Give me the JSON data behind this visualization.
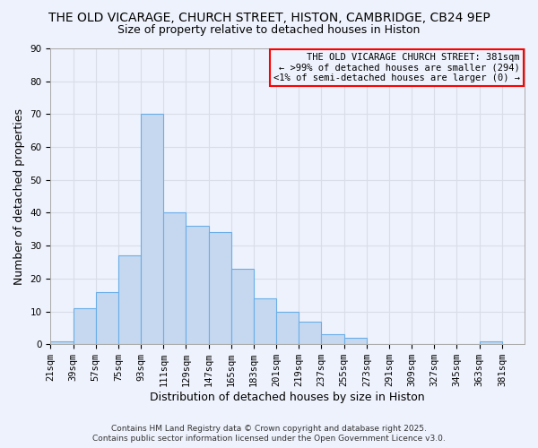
{
  "title": "THE OLD VICARAGE, CHURCH STREET, HISTON, CAMBRIDGE, CB24 9EP",
  "subtitle": "Size of property relative to detached houses in Histon",
  "xlabel": "Distribution of detached houses by size in Histon",
  "ylabel": "Number of detached properties",
  "bar_left_edges": [
    21,
    39,
    57,
    75,
    93,
    111,
    129,
    147,
    165,
    183,
    201,
    219,
    237,
    255,
    273,
    291,
    309,
    327,
    345,
    363
  ],
  "bar_heights": [
    1,
    11,
    16,
    27,
    70,
    40,
    36,
    34,
    23,
    14,
    10,
    7,
    3,
    2,
    0,
    0,
    0,
    0,
    0,
    1
  ],
  "bin_width": 18,
  "bar_color": "#c5d8f0",
  "bar_edgecolor": "#6aaee8",
  "ylim": [
    0,
    90
  ],
  "yticks": [
    0,
    10,
    20,
    30,
    40,
    50,
    60,
    70,
    80,
    90
  ],
  "xtick_labels": [
    "21sqm",
    "39sqm",
    "57sqm",
    "75sqm",
    "93sqm",
    "111sqm",
    "129sqm",
    "147sqm",
    "165sqm",
    "183sqm",
    "201sqm",
    "219sqm",
    "237sqm",
    "255sqm",
    "273sqm",
    "291sqm",
    "309sqm",
    "327sqm",
    "345sqm",
    "363sqm",
    "381sqm"
  ],
  "annotation_line1": "THE OLD VICARAGE CHURCH STREET: 381sqm",
  "annotation_line2": "← >99% of detached houses are smaller (294)",
  "annotation_line3": "<1% of semi-detached houses are larger (0) →",
  "footer1": "Contains HM Land Registry data © Crown copyright and database right 2025.",
  "footer2": "Contains public sector information licensed under the Open Government Licence v3.0.",
  "background_color": "#eef2fc",
  "grid_color": "#d8dde8",
  "title_fontsize": 10,
  "subtitle_fontsize": 9,
  "axis_label_fontsize": 9,
  "tick_fontsize": 7.5,
  "annotation_fontsize": 7.5,
  "footer_fontsize": 6.5
}
